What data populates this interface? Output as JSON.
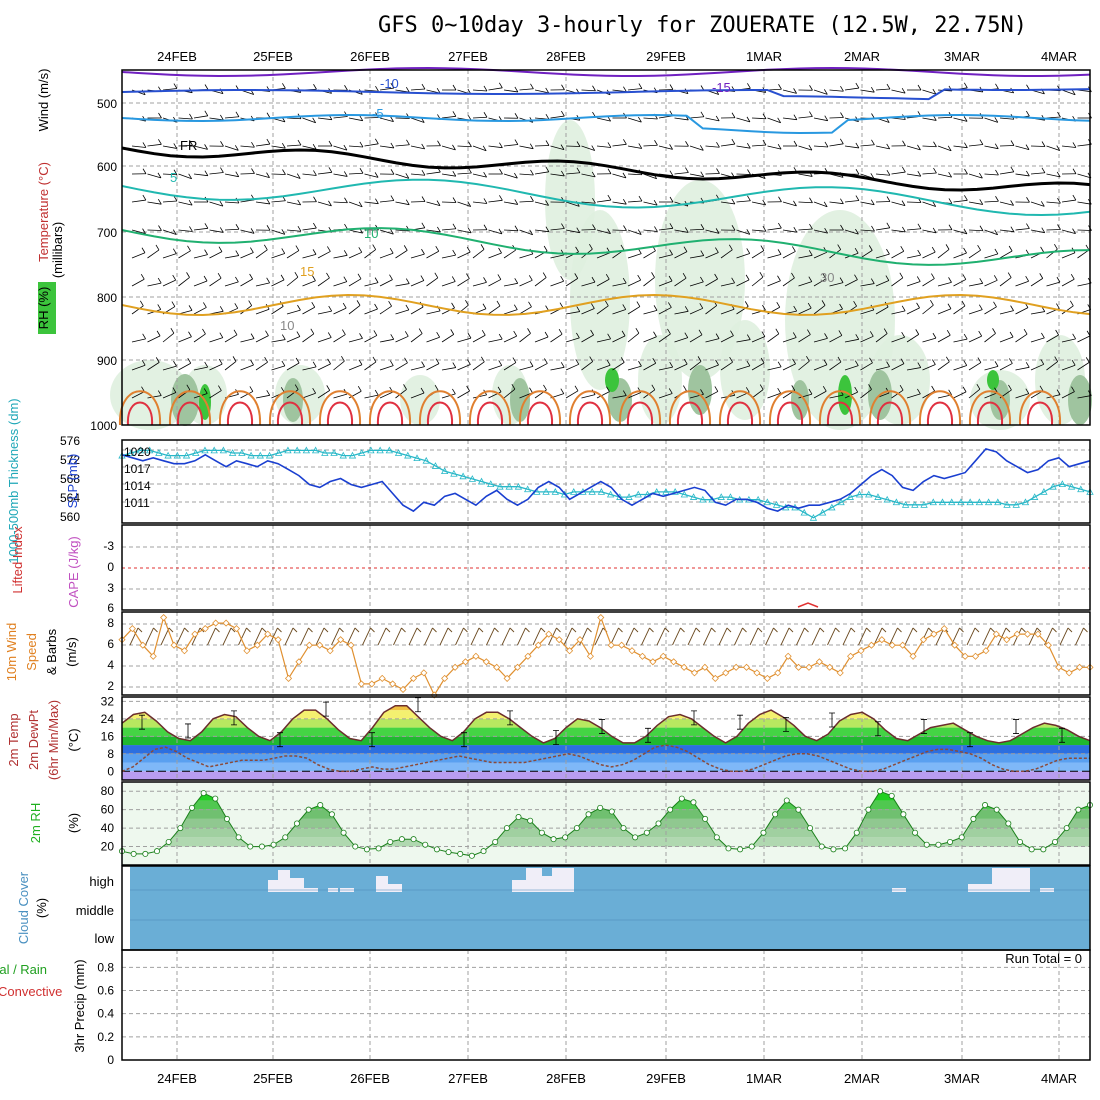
{
  "title": "GFS 0~10day 3-hourly for ZOUERATE (12.5W, 22.75N)",
  "dates": [
    "24FEB",
    "25FEB",
    "26FEB",
    "27FEB",
    "28FEB",
    "29FEB",
    "1MAR",
    "2MAR",
    "3MAR",
    "4MAR"
  ],
  "colors": {
    "frame": "#000000",
    "grid": "#a0a0a0",
    "cloud": "#6aaed6",
    "cloudClear": "#f0eef8",
    "slp": "#1a3fd0",
    "thick": "#28b8c8",
    "wind10": "#e09030",
    "rh": "#30c030",
    "li": "#e03030",
    "cape": "#c050c0"
  },
  "panels": {
    "upper": {
      "ylabel": "(millibars)",
      "legend_wind": "Wind (m/s)",
      "legend_temp": "Temperature (°C)",
      "legend_rh": "RH (%)",
      "levels": [
        "500",
        "600",
        "700",
        "800",
        "900",
        "1000"
      ],
      "isotherm_labels": [
        "-15",
        "-10",
        "-5",
        "FR",
        "5",
        "10",
        "15"
      ],
      "rh_labels": [
        "10",
        "30"
      ]
    },
    "slp": {
      "label_thick": "1000-500mb Thickness (dm)",
      "label_slp": "SLP (mb)",
      "thick_ticks": [
        "576",
        "572",
        "568",
        "564",
        "560"
      ],
      "slp_ticks": [
        "1020",
        "1017",
        "1014",
        "1011"
      ]
    },
    "li": {
      "label_li": "Lifted Index",
      "label_cape": "CAPE (J/kg)",
      "ticks": [
        "-3",
        "0",
        "3",
        "6"
      ]
    },
    "wind": {
      "label1": "10m Wind",
      "label2": "Speed",
      "label3": "& Barbs",
      "unit": "(m/s)",
      "ticks": [
        "8",
        "6",
        "4",
        "2"
      ]
    },
    "temp": {
      "label1": "2m Temp",
      "label2": "2m DewPt",
      "label3": "(6hr Min/Max)",
      "unit": "(°C)",
      "ticks": [
        "32",
        "24",
        "16",
        "8",
        "0"
      ]
    },
    "rh": {
      "label": "2m RH",
      "unit": "(%)",
      "ticks": [
        "80",
        "60",
        "40",
        "20"
      ]
    },
    "cloud": {
      "label": "Cloud Cover",
      "unit": "(%)",
      "levels": [
        "high",
        "middle",
        "low"
      ]
    },
    "precip": {
      "label1": "3hr Precip (mm)",
      "label_total": "Total / Rain",
      "label_conv": "Convective",
      "run_total": "Run Total = 0",
      "ticks": [
        "0.8",
        "0.6",
        "0.4",
        "0.2",
        "0"
      ]
    }
  },
  "chart_data": [
    {
      "type": "line",
      "name": "SLP (mb)",
      "ylim": [
        1008,
        1022
      ],
      "values": [
        1019.5,
        1019,
        1018.5,
        1019,
        1018.5,
        1018,
        1018,
        1018.5,
        1019.5,
        1018.5,
        1017.5,
        1018.5,
        1018,
        1017.5,
        1018.5,
        1018,
        1017,
        1016,
        1014.5,
        1014,
        1015,
        1015.5,
        1014.5,
        1014,
        1014.5,
        1015,
        1013,
        1011,
        1010,
        1011.5,
        1011,
        1012.5,
        1013,
        1012,
        1011,
        1012.5,
        1013.5,
        1012,
        1011,
        1012,
        1014,
        1015,
        1014,
        1012,
        1013,
        1014,
        1015,
        1014,
        1012,
        1011,
        1012,
        1013,
        1012.5,
        1013,
        1013.5,
        1014,
        1013.5,
        1011.5,
        1011,
        1012,
        1012,
        1011.5,
        1010.5,
        1010,
        1011,
        1010.5,
        1011,
        1011,
        1011.5,
        1012,
        1013,
        1014.5,
        1016,
        1017,
        1016,
        1014,
        1013.5,
        1015,
        1016,
        1015.5,
        1016,
        1016.5,
        1018.5,
        1020.5,
        1020,
        1018.5,
        1017.5,
        1016.5,
        1017,
        1018.5,
        1019,
        1017.5,
        1018,
        1018.5
      ]
    },
    {
      "type": "line",
      "name": "1000-500mb Thickness (dm)",
      "ylim": [
        560,
        576
      ],
      "values": [
        573,
        573.5,
        574,
        574,
        573.5,
        573,
        573,
        573,
        573.5,
        574,
        574,
        574,
        573.5,
        573.5,
        573,
        573,
        573,
        573.5,
        574,
        574,
        574,
        574,
        573.5,
        573.5,
        573,
        573,
        573.5,
        574,
        574,
        574,
        573.5,
        573,
        572.5,
        572,
        571,
        570,
        569.5,
        569,
        568.5,
        568,
        567.5,
        567,
        567,
        567,
        566.5,
        566,
        566,
        566,
        565.5,
        566,
        566,
        566,
        566,
        565.5,
        565,
        565,
        565.5,
        565.5,
        566,
        566,
        566,
        565.5,
        565,
        564.5,
        564.5,
        565,
        565,
        564.5,
        564.5,
        564.5,
        564,
        563.5,
        563,
        563,
        562,
        561,
        562,
        563,
        564,
        565,
        565.5,
        565.5,
        565,
        564.5,
        564,
        563.5,
        563.5,
        563.5,
        564,
        564,
        564,
        564,
        564,
        564,
        564,
        564,
        563.5,
        563.5,
        564,
        565,
        566,
        567,
        567.5,
        567,
        566.5,
        566
      ]
    },
    {
      "type": "line",
      "name": "10m Wind Speed (m/s)",
      "ylim": [
        1.5,
        9
      ],
      "values": [
        6.5,
        7.5,
        6,
        5,
        8.5,
        6,
        5.5,
        7,
        7.5,
        8,
        8,
        7.5,
        5.5,
        6,
        7,
        6.5,
        3,
        4.5,
        6,
        6,
        5.5,
        6.5,
        6,
        2.5,
        2.5,
        3,
        2.5,
        2,
        3,
        3.5,
        1.5,
        3,
        4,
        4.5,
        5,
        4.5,
        4,
        3,
        4,
        5,
        6,
        7,
        6.5,
        5.5,
        6.5,
        5,
        8.5,
        6,
        6,
        5.5,
        5,
        4.5,
        5,
        4.5,
        4,
        3.5,
        4,
        3,
        3.5,
        4,
        4,
        3.5,
        3,
        3.5,
        5,
        4,
        4,
        4.5,
        4,
        3.5,
        5,
        5.5,
        6,
        6.5,
        6,
        6,
        5,
        6.5,
        7,
        7.5,
        6,
        5,
        5,
        5.5,
        7,
        6.5,
        7,
        7,
        7,
        6,
        4,
        3.5,
        4,
        4
      ]
    },
    {
      "type": "area",
      "name": "2m Temp (°C)",
      "ylim": [
        -4,
        34
      ],
      "values": [
        22,
        26,
        27,
        23,
        18,
        15,
        14,
        18,
        24,
        26,
        25,
        20,
        16,
        14,
        18,
        24,
        28,
        28,
        24,
        19,
        15,
        14,
        20,
        27,
        30,
        30,
        25,
        20,
        16,
        14,
        18,
        24,
        27,
        27,
        24,
        20,
        16,
        13,
        15,
        20,
        24,
        23,
        20,
        16,
        13,
        13,
        16,
        21,
        25,
        26,
        24,
        20,
        16,
        13,
        16,
        22,
        26,
        28,
        25,
        21,
        16,
        14,
        17,
        23,
        26,
        27,
        24,
        19,
        15,
        14,
        17,
        20,
        21,
        22,
        19,
        16,
        14,
        13,
        14,
        17,
        20,
        22,
        21,
        19,
        16,
        14
      ]
    },
    {
      "type": "line",
      "name": "2m DewPt (°C)",
      "ylim": [
        -4,
        34
      ],
      "values": [
        0,
        2,
        6,
        10,
        11,
        9,
        6,
        4,
        2,
        3,
        4,
        5,
        5,
        5,
        6,
        7,
        7,
        6,
        3,
        1,
        0,
        0,
        1,
        2,
        1,
        1,
        2,
        3,
        4,
        5,
        6,
        7,
        6,
        5,
        4,
        4,
        4,
        4,
        5,
        6,
        7,
        8,
        7,
        5,
        3,
        2,
        3,
        5,
        8,
        11,
        12,
        11,
        9,
        6,
        3,
        1,
        0,
        0,
        1,
        3,
        5,
        7,
        8,
        8,
        7,
        5,
        3,
        1,
        0,
        0,
        1,
        3,
        5,
        7,
        9,
        10,
        10,
        9,
        8,
        6,
        3,
        1,
        0,
        0,
        1,
        3,
        5,
        6,
        6,
        6
      ]
    },
    {
      "type": "area",
      "name": "2m RH (%)",
      "ylim": [
        0,
        90
      ],
      "values": [
        15,
        12,
        12,
        15,
        25,
        40,
        62,
        78,
        72,
        50,
        30,
        20,
        20,
        22,
        30,
        45,
        60,
        65,
        55,
        35,
        20,
        17,
        18,
        25,
        28,
        28,
        22,
        17,
        14,
        12,
        10,
        15,
        25,
        40,
        52,
        48,
        35,
        28,
        30,
        40,
        55,
        62,
        58,
        40,
        30,
        35,
        45,
        60,
        72,
        68,
        50,
        30,
        18,
        17,
        20,
        35,
        55,
        70,
        60,
        40,
        20,
        17,
        18,
        35,
        60,
        80,
        75,
        55,
        35,
        22,
        22,
        25,
        30,
        50,
        65,
        60,
        45,
        25,
        17,
        17,
        25,
        40,
        60,
        65
      ]
    },
    {
      "type": "table",
      "name": "Cloud Cover (%)",
      "columns": [
        "time_step",
        "high",
        "middle",
        "low"
      ],
      "note": "high cloud present around 25FEB 06-18Z, 26FEB 00-06Z, 27FEB 12Z-28FEB 03Z, 2MAR 09Z, 3MAR 00-18Z; middle and low clear"
    },
    {
      "type": "bar",
      "name": "3hr Precip (mm)",
      "ylim": [
        0,
        1
      ],
      "values": []
    }
  ]
}
